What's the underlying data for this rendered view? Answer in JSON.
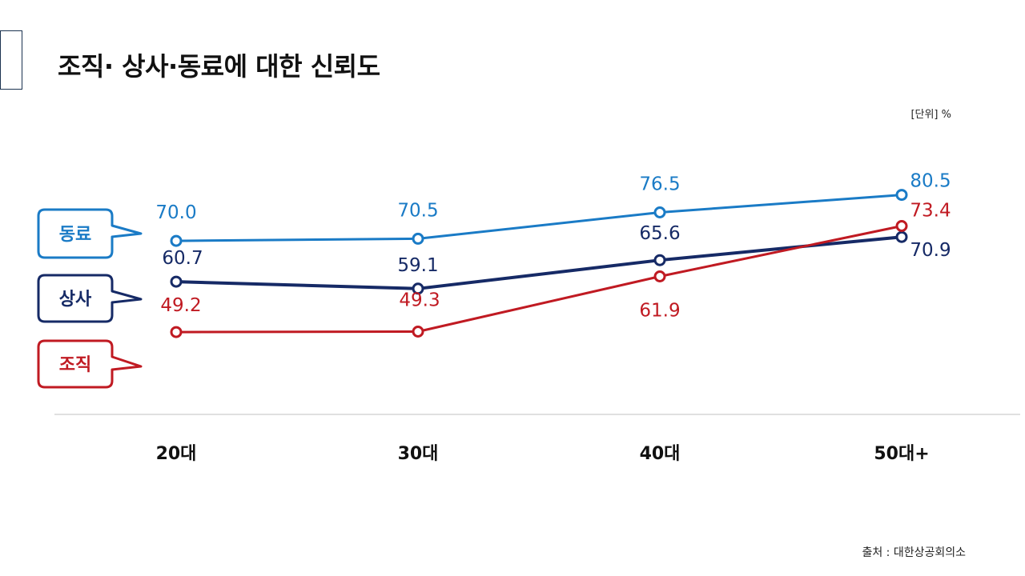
{
  "title": "조직· 상사·동료에 대한 신뢰도",
  "unit_label": "[단위] %",
  "source": "출처 : 대한상공회의소",
  "colors": {
    "accent": "#2a5a8c",
    "peer": "#1a7bc6",
    "boss": "#162a66",
    "org": "#c01a22",
    "axis": "#e0e0e0"
  },
  "chart_data": {
    "type": "line",
    "categories": [
      "20대",
      "30대",
      "40대",
      "50대+"
    ],
    "series": [
      {
        "name": "동료",
        "values": [
          70.0,
          70.5,
          76.5,
          80.5
        ],
        "labels": [
          "70.0",
          "70.5",
          "76.5",
          "80.5"
        ]
      },
      {
        "name": "상사",
        "values": [
          60.7,
          59.1,
          65.6,
          70.9
        ],
        "labels": [
          "60.7",
          "59.1",
          "65.6",
          "70.9"
        ]
      },
      {
        "name": "조직",
        "values": [
          49.2,
          49.3,
          61.9,
          73.4
        ],
        "labels": [
          "49.2",
          "49.3",
          "61.9",
          "73.4"
        ]
      }
    ],
    "legend_position": "left",
    "grid": false
  }
}
